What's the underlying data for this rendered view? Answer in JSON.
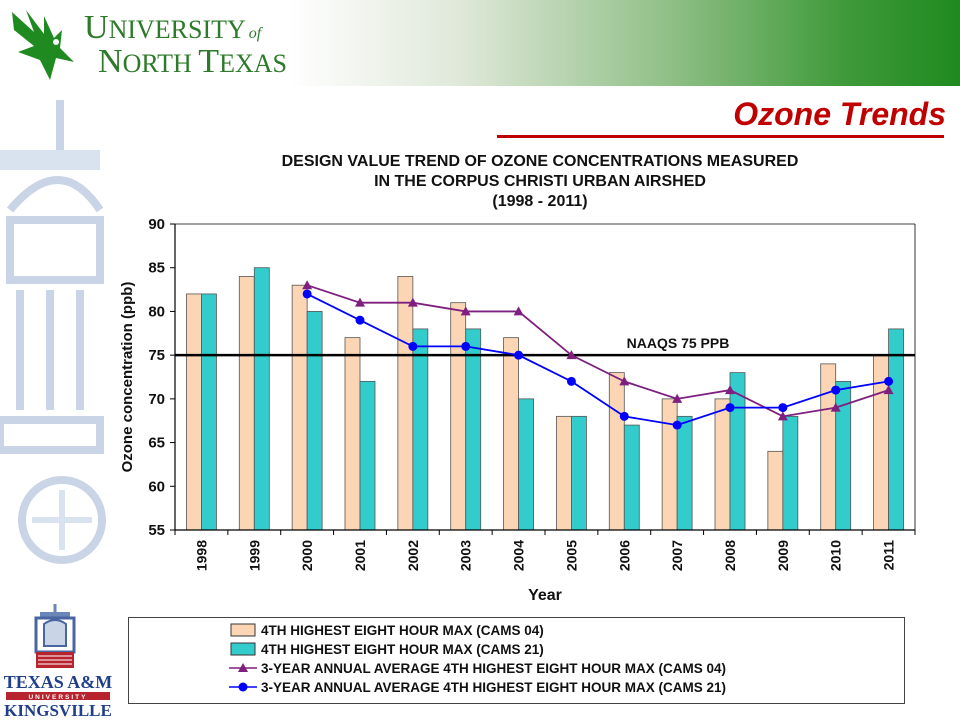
{
  "header": {
    "univ_line1_cap": "U",
    "univ_line1_rest": "NIVERSITY",
    "univ_of": "of",
    "univ_line2_cap": "N",
    "univ_line2_rest": "ORTH ",
    "univ_line2_cap2": "T",
    "univ_line2_rest2": "EXAS"
  },
  "slide": {
    "title": "Ozone Trends"
  },
  "footer_logo": {
    "line1": "TEXAS A&M",
    "line2": "UNIVERSITY",
    "line3": "KINGSVILLE"
  },
  "colors": {
    "bar1": "#fcd5b5",
    "bar2": "#33cccc",
    "line1": "#7f1f7f",
    "line2": "#0000ff",
    "title_red": "#c00000",
    "header_green": "#1f8a1f"
  },
  "chart_data": {
    "type": "bar",
    "title_lines": [
      "DESIGN VALUE TREND OF OZONE CONCENTRATIONS MEASURED",
      "IN THE CORPUS CHRISTI URBAN AIRSHED",
      "(1998 - 2011)"
    ],
    "xlabel": "Year",
    "ylabel": "Ozone concentration (ppb)",
    "ylim": [
      55,
      90
    ],
    "yticks": [
      55,
      60,
      65,
      70,
      75,
      80,
      85,
      90
    ],
    "grid": false,
    "categories": [
      "1998",
      "1999",
      "2000",
      "2001",
      "2002",
      "2003",
      "2004",
      "2005",
      "2006",
      "2007",
      "2008",
      "2009",
      "2010",
      "2011"
    ],
    "series": [
      {
        "name": "4TH HIGHEST EIGHT HOUR MAX (CAMS 04)",
        "kind": "bar",
        "color": "#fcd5b5",
        "values": [
          82,
          84,
          83,
          77,
          84,
          81,
          77,
          68,
          73,
          70,
          70,
          64,
          74,
          75
        ]
      },
      {
        "name": "4TH HIGHEST EIGHT HOUR MAX (CAMS 21)",
        "kind": "bar",
        "color": "#33cccc",
        "values": [
          82,
          85,
          80,
          72,
          78,
          78,
          70,
          68,
          67,
          68,
          73,
          68,
          72,
          78
        ]
      },
      {
        "name": "3-YEAR ANNUAL AVERAGE 4TH HIGHEST EIGHT HOUR MAX (CAMS 04)",
        "kind": "line",
        "marker": "triangle",
        "color": "#7f1f7f",
        "values": [
          null,
          null,
          83,
          81,
          81,
          80,
          80,
          75,
          72,
          70,
          71,
          68,
          69,
          71
        ]
      },
      {
        "name": "3-YEAR ANNUAL AVERAGE 4TH HIGHEST EIGHT HOUR MAX (CAMS 21)",
        "kind": "line",
        "marker": "circle",
        "color": "#0000ff",
        "values": [
          null,
          null,
          82,
          79,
          76,
          76,
          75,
          72,
          68,
          67,
          69,
          69,
          71,
          72
        ]
      }
    ],
    "reference_line": {
      "value": 75,
      "label": "NAAQS 75 PPB"
    },
    "legend_position": "bottom"
  }
}
